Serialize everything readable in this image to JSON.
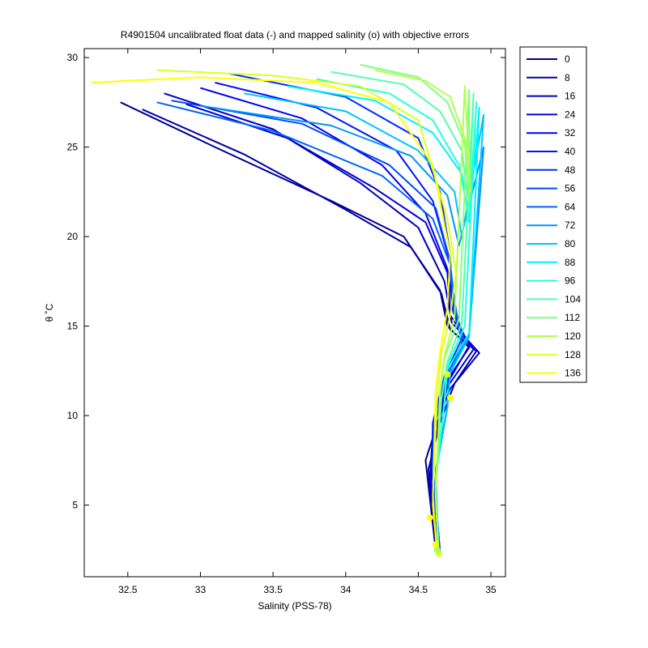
{
  "chart_data": {
    "type": "line",
    "title": "R4901504 uncalibrated float data (-) and mapped salinity (o) with objective errors",
    "xlabel": "Salinity (PSS-78)",
    "ylabel": "θ ˚C",
    "xlim": [
      32.2,
      35.1
    ],
    "ylim": [
      1.0,
      30.5
    ],
    "xticks": [
      32.5,
      33,
      33.5,
      34,
      34.5,
      35
    ],
    "xtick_labels": [
      "32.5",
      "33",
      "33.5",
      "34",
      "34.5",
      "35"
    ],
    "yticks": [
      5,
      10,
      15,
      20,
      25,
      30
    ],
    "ytick_labels": [
      "5",
      "10",
      "15",
      "20",
      "25",
      "30"
    ],
    "grid": false,
    "legend_position": "outside-right",
    "colormap": [
      "#00008f",
      "#0000ff",
      "#00ffff",
      "#ffff00"
    ],
    "series": [
      {
        "name": "0",
        "color": "#00008f",
        "x": [
          32.45,
          33.1,
          33.9,
          34.4,
          34.65,
          34.7,
          34.85,
          34.7,
          34.65,
          34.55,
          34.62
        ],
        "y": [
          27.5,
          25.0,
          22.0,
          20.0,
          17.0,
          15.0,
          13.8,
          12.0,
          10.0,
          7.5,
          2.5
        ]
      },
      {
        "name": "8",
        "color": "#0000a6",
        "x": [
          32.6,
          33.3,
          34.0,
          34.45,
          34.66,
          34.72,
          34.9,
          34.75,
          34.65,
          34.57,
          34.62
        ],
        "y": [
          27.1,
          24.6,
          21.5,
          19.4,
          16.8,
          14.8,
          13.6,
          11.8,
          9.6,
          7.0,
          2.4
        ]
      },
      {
        "name": "16",
        "color": "#0000c0",
        "x": [
          32.75,
          33.5,
          34.1,
          34.5,
          34.68,
          34.73,
          34.92,
          34.72,
          34.6,
          34.58,
          34.63
        ],
        "y": [
          28.0,
          26.0,
          23.0,
          20.5,
          17.5,
          15.2,
          13.5,
          11.5,
          9.0,
          6.5,
          2.3
        ]
      },
      {
        "name": "24",
        "color": "#0000da",
        "x": [
          32.9,
          33.6,
          34.2,
          34.55,
          34.7,
          34.72,
          34.88,
          34.7,
          34.62,
          34.58,
          34.64
        ],
        "y": [
          27.4,
          25.5,
          22.7,
          20.8,
          18.0,
          15.6,
          13.7,
          11.6,
          8.8,
          6.0,
          2.2
        ]
      },
      {
        "name": "32",
        "color": "#0000f4",
        "x": [
          33.0,
          33.7,
          34.25,
          34.55,
          34.7,
          34.74,
          34.85,
          34.7,
          34.6,
          34.59,
          34.64
        ],
        "y": [
          28.3,
          26.6,
          24.0,
          21.3,
          18.2,
          15.8,
          13.9,
          11.8,
          9.2,
          6.3,
          2.2
        ]
      },
      {
        "name": "40",
        "color": "#0012ff",
        "x": [
          33.1,
          33.8,
          34.35,
          34.6,
          34.72,
          34.74,
          34.82,
          34.68,
          34.6,
          34.6,
          34.65
        ],
        "y": [
          28.6,
          27.2,
          24.8,
          22.0,
          18.5,
          16.0,
          14.2,
          12.0,
          9.5,
          6.6,
          2.3
        ]
      },
      {
        "name": "48",
        "color": "#002dff",
        "x": [
          33.2,
          34.0,
          34.5,
          34.65,
          34.72,
          34.73,
          34.8,
          34.68,
          34.6,
          34.6,
          34.65
        ],
        "y": [
          29.1,
          27.8,
          25.5,
          22.5,
          19.0,
          16.2,
          14.3,
          12.2,
          9.6,
          6.8,
          2.4
        ]
      },
      {
        "name": "56",
        "color": "#0049ff",
        "x": [
          32.8,
          33.7,
          34.3,
          34.62,
          34.72,
          34.74,
          34.82,
          34.7,
          34.62,
          34.6,
          34.65
        ],
        "y": [
          27.6,
          26.3,
          24.0,
          21.6,
          18.6,
          16.3,
          14.1,
          12.1,
          9.7,
          7.0,
          2.4
        ]
      },
      {
        "name": "64",
        "color": "#0064ff",
        "x": [
          32.7,
          33.5,
          34.25,
          34.6,
          34.72,
          34.75,
          34.8,
          34.7,
          34.62,
          34.6,
          34.65
        ],
        "y": [
          27.5,
          25.9,
          23.4,
          21.0,
          18.4,
          16.4,
          14.0,
          12.2,
          9.8,
          7.2,
          2.4
        ]
      },
      {
        "name": "72",
        "color": "#0093ff",
        "x": [
          33.0,
          33.9,
          34.45,
          34.7,
          34.78,
          34.95,
          34.85,
          34.72,
          34.7,
          34.62,
          34.64
        ],
        "y": [
          27.3,
          26.2,
          24.5,
          22.3,
          19.5,
          25.0,
          14.5,
          12.5,
          10.5,
          7.0,
          2.3
        ]
      },
      {
        "name": "80",
        "color": "#00c2ff",
        "x": [
          33.3,
          34.0,
          34.5,
          34.75,
          34.8,
          34.95,
          34.85,
          34.72,
          34.7,
          34.62,
          34.64
        ],
        "y": [
          28.0,
          27.0,
          24.8,
          22.5,
          20.0,
          26.8,
          14.4,
          12.4,
          10.4,
          6.8,
          2.3
        ]
      },
      {
        "name": "88",
        "color": "#00f0ff",
        "x": [
          33.6,
          34.2,
          34.6,
          34.8,
          34.85,
          34.92,
          34.85,
          34.7,
          34.68,
          34.62,
          34.64
        ],
        "y": [
          28.4,
          27.6,
          25.8,
          23.5,
          20.8,
          27.2,
          14.6,
          12.6,
          10.6,
          6.5,
          2.2
        ]
      },
      {
        "name": "96",
        "color": "#23ffdc",
        "x": [
          33.8,
          34.3,
          34.6,
          34.78,
          34.85,
          34.9,
          34.82,
          34.7,
          34.68,
          34.62,
          34.64
        ],
        "y": [
          28.8,
          28.0,
          26.5,
          24.0,
          21.0,
          27.5,
          15.0,
          12.8,
          10.8,
          6.3,
          2.2
        ]
      },
      {
        "name": "104",
        "color": "#52ffad",
        "x": [
          33.9,
          34.4,
          34.65,
          34.8,
          34.85,
          34.88,
          34.8,
          34.7,
          34.66,
          34.62,
          34.64
        ],
        "y": [
          29.2,
          28.5,
          27.0,
          24.8,
          21.5,
          28.0,
          15.2,
          13.0,
          11.0,
          6.0,
          2.1
        ]
      },
      {
        "name": "112",
        "color": "#81ff7e",
        "x": [
          34.1,
          34.5,
          34.7,
          34.82,
          34.85,
          34.85,
          34.78,
          34.68,
          34.65,
          34.62,
          34.64
        ],
        "y": [
          29.6,
          28.9,
          27.5,
          25.2,
          22.0,
          28.2,
          15.4,
          13.2,
          11.2,
          5.8,
          2.1
        ]
      },
      {
        "name": "120",
        "color": "#b0ff4f",
        "x": [
          34.2,
          34.55,
          34.72,
          34.82,
          34.86,
          34.82,
          34.75,
          34.68,
          34.65,
          34.62,
          34.64
        ],
        "y": [
          29.3,
          28.7,
          27.8,
          25.5,
          22.5,
          28.4,
          15.5,
          13.3,
          11.3,
          5.5,
          2.1
        ]
      },
      {
        "name": "128",
        "color": "#dfff20",
        "x": [
          32.7,
          33.5,
          34.1,
          34.5,
          34.7,
          34.76,
          34.72,
          34.66,
          34.63,
          34.6,
          34.63
        ],
        "y": [
          29.3,
          29.0,
          28.4,
          26.5,
          21.0,
          18.0,
          15.6,
          13.5,
          11.0,
          5.5,
          2.2
        ]
      },
      {
        "name": "136",
        "color": "#ffff00",
        "x": [
          32.25,
          33.0,
          33.8,
          34.3,
          34.6,
          34.72,
          34.7,
          34.65,
          34.62,
          34.6,
          34.63
        ],
        "y": [
          28.6,
          28.9,
          28.6,
          27.5,
          24.0,
          19.0,
          16.0,
          13.5,
          11.5,
          5.0,
          2.3
        ]
      }
    ],
    "mapped_points": [
      {
        "x": 34.58,
        "y": 4.3,
        "color": "#ffff00"
      },
      {
        "x": 34.62,
        "y": 2.8,
        "color": "#ffff00"
      },
      {
        "x": 34.64,
        "y": 2.3,
        "color": "#dfff20"
      },
      {
        "x": 34.63,
        "y": 2.5,
        "color": "#b0ff4f"
      },
      {
        "x": 34.72,
        "y": 11.0,
        "color": "#ffff00"
      },
      {
        "x": 34.7,
        "y": 12.3,
        "color": "#dfff20"
      }
    ]
  }
}
